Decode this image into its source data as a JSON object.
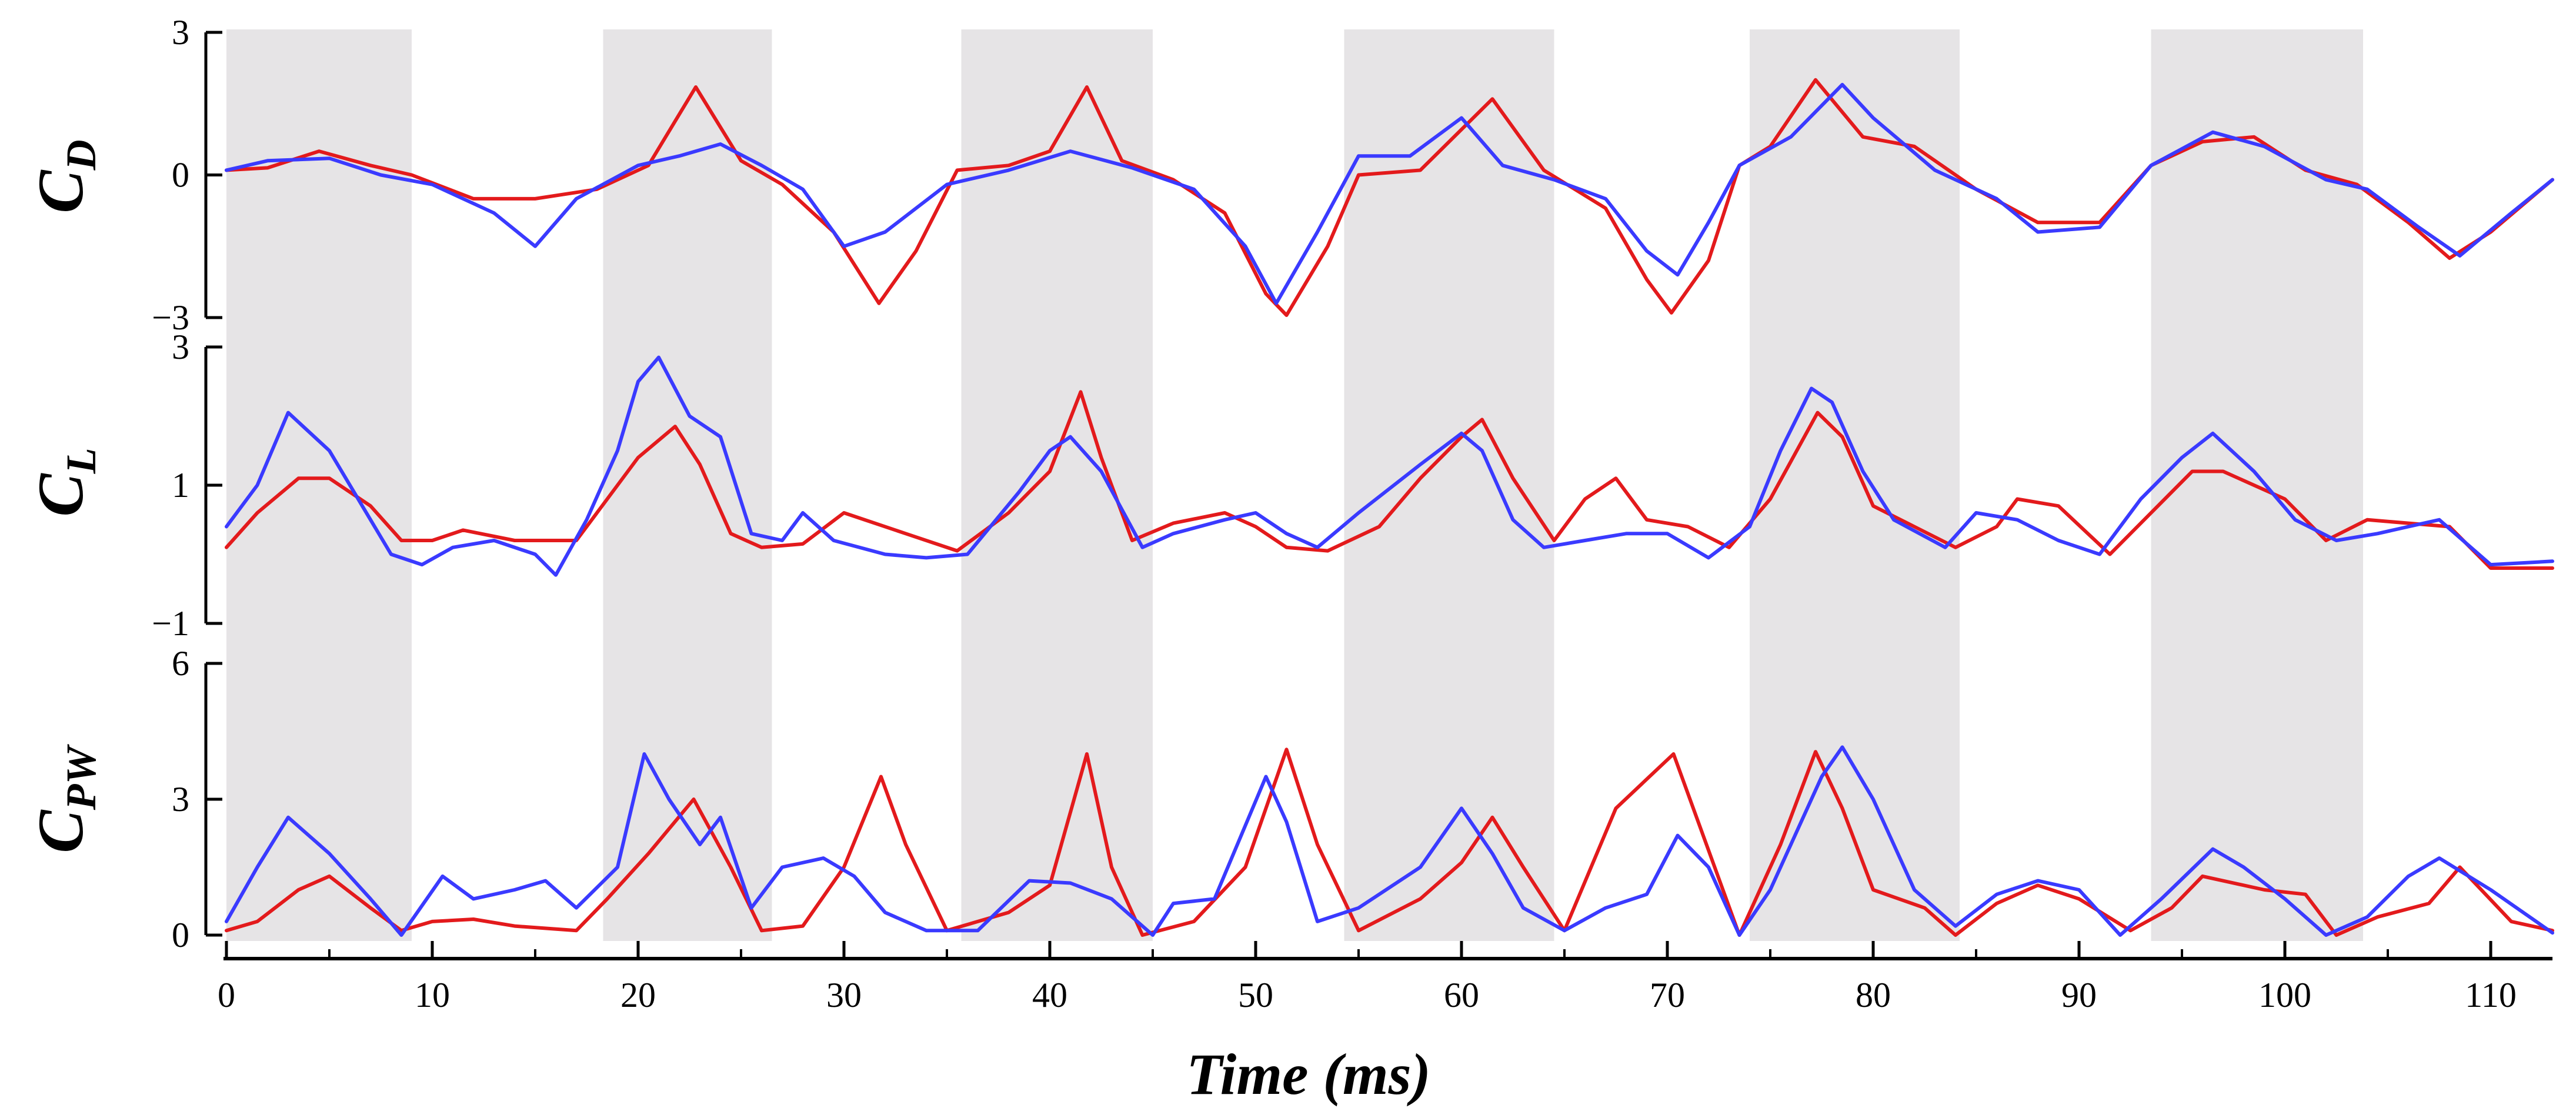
{
  "chart_data": {
    "type": "line",
    "xlabel": "Time (ms)",
    "xlim": [
      0,
      113
    ],
    "xticks": [
      0,
      10,
      20,
      30,
      40,
      50,
      60,
      70,
      80,
      90,
      100,
      110
    ],
    "shaded_intervals": [
      [
        0,
        9
      ],
      [
        18.3,
        26.5
      ],
      [
        35.7,
        45
      ],
      [
        54.3,
        64.5
      ],
      [
        74,
        84.2
      ],
      [
        93.5,
        103.8
      ]
    ],
    "colors": {
      "red": "#e31a1c",
      "blue": "#3a3aff",
      "shade": "#e6e4e6"
    },
    "panels": [
      {
        "id": "cd",
        "ylabel_main": "C",
        "ylabel_sub": "D",
        "ylim": [
          -3,
          3
        ],
        "yticks": [
          -3,
          0,
          3
        ],
        "ytick_labels": [
          "−3",
          "0",
          "3"
        ],
        "series": [
          {
            "color": "red",
            "x": [
              0,
              2,
              4.5,
              7,
              9,
              12,
              15,
              18,
              20.5,
              22.8,
              25,
              27,
              29.5,
              31.7,
              33.5,
              35.5,
              38,
              40,
              41.8,
              43.5,
              46,
              48.5,
              50.5,
              51.5,
              53.5,
              55,
              58,
              61.5,
              64,
              67,
              69,
              70.2,
              72,
              73.5,
              75,
              77.2,
              79.5,
              82,
              85,
              88,
              91,
              93.5,
              96,
              98.5,
              101,
              103.5,
              106,
              108,
              110,
              113
            ],
            "y": [
              0.1,
              0.15,
              0.5,
              0.2,
              0,
              -0.5,
              -0.5,
              -0.3,
              0.2,
              1.85,
              0.3,
              -0.2,
              -1.2,
              -2.7,
              -1.6,
              0.1,
              0.2,
              0.5,
              1.85,
              0.3,
              -0.1,
              -0.8,
              -2.5,
              -2.95,
              -1.5,
              0,
              0.1,
              1.6,
              0.1,
              -0.7,
              -2.2,
              -2.9,
              -1.8,
              0.2,
              0.6,
              2,
              0.8,
              0.6,
              -0.3,
              -1,
              -1,
              0.2,
              0.7,
              0.8,
              0.1,
              -0.2,
              -1,
              -1.75,
              -1.2,
              -0.1
            ]
          },
          {
            "color": "blue",
            "x": [
              0,
              2,
              5,
              7.5,
              10,
              13,
              15,
              17,
              20,
              22,
              24,
              26,
              28,
              30,
              32,
              35,
              38,
              41,
              44,
              47,
              49.5,
              51,
              53,
              55,
              57.5,
              60,
              62,
              64.5,
              67,
              69,
              70.5,
              72,
              73.5,
              76,
              78.5,
              80,
              83,
              86,
              88,
              91,
              93.5,
              96.5,
              99,
              102,
              104,
              106.5,
              108.5,
              111,
              113
            ],
            "y": [
              0.1,
              0.3,
              0.35,
              0,
              -0.2,
              -0.8,
              -1.5,
              -0.5,
              0.2,
              0.4,
              0.65,
              0.2,
              -0.3,
              -1.5,
              -1.2,
              -0.2,
              0.1,
              0.5,
              0.15,
              -0.3,
              -1.5,
              -2.7,
              -1.2,
              0.4,
              0.4,
              1.2,
              0.2,
              -0.1,
              -0.5,
              -1.6,
              -2.1,
              -1,
              0.2,
              0.8,
              1.9,
              1.2,
              0.1,
              -0.5,
              -1.2,
              -1.1,
              0.2,
              0.9,
              0.6,
              -0.1,
              -0.3,
              -1.1,
              -1.7,
              -0.8,
              -0.1
            ]
          }
        ]
      },
      {
        "id": "cl",
        "ylabel_main": "C",
        "ylabel_sub": "L",
        "ylim": [
          -1,
          3
        ],
        "yticks": [
          -1,
          1,
          3
        ],
        "ytick_labels": [
          "−1",
          "1",
          "3"
        ],
        "series": [
          {
            "color": "red",
            "x": [
              0,
              1.5,
              3.5,
              5,
              7,
              8.5,
              10,
              11.5,
              14,
              17,
              18.5,
              20,
              21.8,
              23,
              24.5,
              26,
              28,
              30,
              33,
              35.5,
              38,
              40,
              41.5,
              42.5,
              44,
              46,
              48.5,
              50,
              51.5,
              53.5,
              56,
              58,
              60,
              61,
              62.5,
              64.5,
              66,
              67.5,
              69,
              71,
              73,
              75,
              77.3,
              78.5,
              80,
              82,
              84,
              86,
              87,
              89,
              91.5,
              93.5,
              95.5,
              97,
              100,
              102,
              104,
              108,
              110,
              113
            ],
            "y": [
              0.1,
              0.6,
              1.1,
              1.1,
              0.7,
              0.2,
              0.2,
              0.35,
              0.2,
              0.2,
              0.8,
              1.4,
              1.85,
              1.3,
              0.3,
              0.1,
              0.15,
              0.6,
              0.3,
              0.05,
              0.6,
              1.2,
              2.35,
              1.4,
              0.2,
              0.45,
              0.6,
              0.4,
              0.1,
              0.05,
              0.4,
              1.1,
              1.7,
              1.95,
              1.1,
              0.2,
              0.8,
              1.1,
              0.5,
              0.4,
              0.1,
              0.8,
              2.05,
              1.7,
              0.7,
              0.4,
              0.1,
              0.4,
              0.8,
              0.7,
              0,
              0.6,
              1.2,
              1.2,
              0.8,
              0.2,
              0.5,
              0.4,
              -0.2,
              -0.2
            ]
          },
          {
            "color": "blue",
            "x": [
              0,
              1.5,
              3,
              5,
              7,
              8,
              9.5,
              11,
              13,
              15,
              16,
              17.5,
              19,
              20,
              21,
              22.5,
              24,
              25.5,
              27,
              28,
              29.5,
              32,
              34,
              36,
              38.5,
              40,
              41,
              42.5,
              44.5,
              46,
              48.5,
              50,
              51.5,
              53,
              55,
              58,
              60,
              61,
              62.5,
              64,
              66,
              68,
              70,
              72,
              74,
              75.5,
              77,
              78,
              79.5,
              81,
              83.5,
              85,
              87,
              89,
              91,
              93,
              95,
              96.5,
              98.5,
              100.5,
              102.5,
              104.5,
              106,
              107.5,
              110,
              113
            ],
            "y": [
              0.4,
              1,
              2.05,
              1.5,
              0.5,
              0,
              -0.15,
              0.1,
              0.2,
              0,
              -0.3,
              0.5,
              1.5,
              2.5,
              2.85,
              2,
              1.7,
              0.3,
              0.2,
              0.6,
              0.2,
              0,
              -0.05,
              0,
              0.9,
              1.5,
              1.7,
              1.2,
              0.1,
              0.3,
              0.5,
              0.6,
              0.3,
              0.1,
              0.6,
              1.3,
              1.75,
              1.5,
              0.5,
              0.1,
              0.2,
              0.3,
              0.3,
              -0.05,
              0.4,
              1.5,
              2.4,
              2.2,
              1.2,
              0.5,
              0.1,
              0.6,
              0.5,
              0.2,
              0,
              0.8,
              1.4,
              1.75,
              1.2,
              0.5,
              0.2,
              0.3,
              0.4,
              0.5,
              -0.15,
              -0.1
            ]
          }
        ]
      },
      {
        "id": "cpw",
        "ylabel_main": "C",
        "ylabel_sub": "PW",
        "ylim": [
          0,
          6
        ],
        "yticks": [
          0,
          3,
          6
        ],
        "ytick_labels": [
          "0",
          "3",
          "6"
        ],
        "series": [
          {
            "color": "red",
            "x": [
              0,
              1.5,
              3.5,
              5,
              7,
              8.5,
              10,
              12,
              14,
              17,
              18.5,
              20.5,
              22.7,
              24.5,
              26,
              28,
              30,
              31.8,
              33,
              35,
              38,
              40,
              41.8,
              43,
              44.5,
              47,
              49.5,
              51.5,
              53,
              55,
              58,
              60,
              61.5,
              63,
              65,
              67.5,
              70.3,
              71.5,
              73.5,
              75.5,
              77.2,
              78.5,
              80,
              82.5,
              84,
              86,
              88,
              90,
              92.5,
              94.5,
              96,
              99,
              101,
              102.5,
              104.5,
              107,
              108.5,
              111,
              113
            ],
            "y": [
              0.1,
              0.3,
              1,
              1.3,
              0.6,
              0.1,
              0.3,
              0.35,
              0.2,
              0.1,
              0.8,
              1.8,
              3,
              1.5,
              0.1,
              0.2,
              1.5,
              3.5,
              2,
              0.1,
              0.5,
              1.1,
              4,
              1.5,
              0,
              0.3,
              1.5,
              4.1,
              2,
              0.1,
              0.8,
              1.6,
              2.6,
              1.5,
              0.1,
              2.8,
              4,
              2.5,
              0,
              2,
              4.05,
              2.8,
              1,
              0.6,
              0,
              0.7,
              1.1,
              0.8,
              0.1,
              0.6,
              1.3,
              1,
              0.9,
              0,
              0.4,
              0.7,
              1.5,
              0.3,
              0.1
            ]
          },
          {
            "color": "blue",
            "x": [
              0,
              1.5,
              3,
              5,
              7,
              8.5,
              10.5,
              12,
              14,
              15.5,
              17,
              19,
              20.3,
              21.5,
              23,
              24,
              25.5,
              27,
              29,
              30.5,
              32,
              34,
              36.5,
              39,
              41,
              43,
              45,
              46,
              48,
              50.5,
              51.5,
              53,
              55,
              58,
              60,
              61.5,
              63,
              65,
              67,
              69,
              70.5,
              72,
              73.5,
              75,
              77.5,
              78.5,
              80,
              82,
              84,
              86,
              88,
              90,
              92,
              94,
              96.5,
              98,
              100,
              102,
              104,
              106,
              107.5,
              110,
              113
            ],
            "y": [
              0.3,
              1.5,
              2.6,
              1.8,
              0.8,
              0,
              1.3,
              0.8,
              1,
              1.2,
              0.6,
              1.5,
              4,
              3,
              2,
              2.6,
              0.6,
              1.5,
              1.7,
              1.3,
              0.5,
              0.1,
              0.1,
              1.2,
              1.15,
              0.8,
              0,
              0.7,
              0.8,
              3.5,
              2.5,
              0.3,
              0.6,
              1.5,
              2.8,
              1.8,
              0.6,
              0.1,
              0.6,
              0.9,
              2.2,
              1.5,
              0,
              1,
              3.5,
              4.15,
              3,
              1,
              0.2,
              0.9,
              1.2,
              1,
              0,
              0.8,
              1.9,
              1.5,
              0.8,
              0,
              0.4,
              1.3,
              1.7,
              1,
              0.05
            ]
          }
        ]
      }
    ]
  }
}
